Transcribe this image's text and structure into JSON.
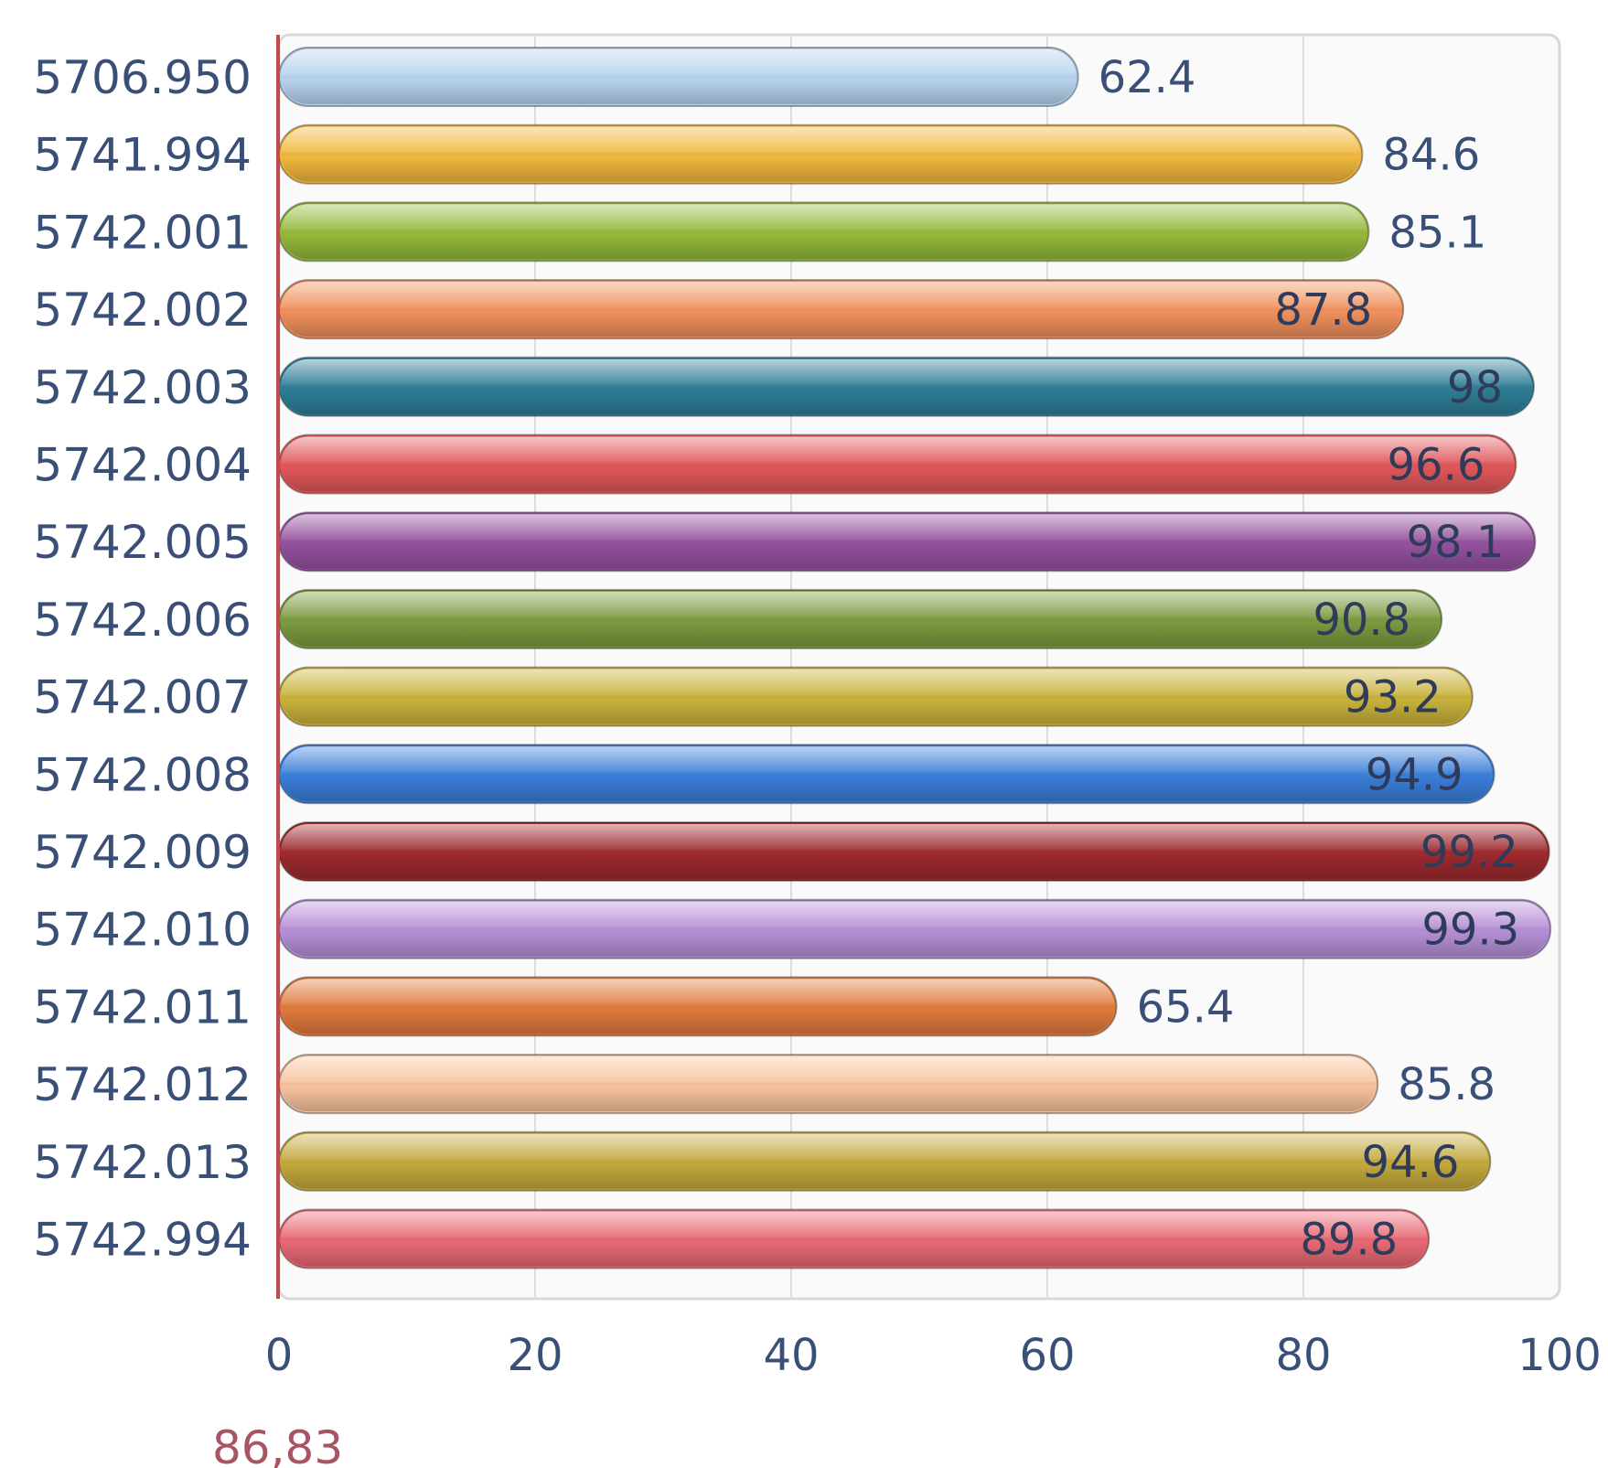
{
  "chart_data": {
    "type": "bar",
    "orientation": "horizontal",
    "categories": [
      "5706.950",
      "5741.994",
      "5742.001",
      "5742.002",
      "5742.003",
      "5742.004",
      "5742.005",
      "5742.006",
      "5742.007",
      "5742.008",
      "5742.009",
      "5742.010",
      "5742.011",
      "5742.012",
      "5742.013",
      "5742.994"
    ],
    "values": [
      62.4,
      84.6,
      85.1,
      87.8,
      98,
      96.6,
      98.1,
      90.8,
      93.2,
      94.9,
      99.2,
      99.3,
      65.4,
      85.8,
      94.6,
      89.8
    ],
    "value_labels": [
      "62.4",
      "84.6",
      "85.1",
      "87.8",
      "98",
      "96.6",
      "98.1",
      "90.8",
      "93.2",
      "94.9",
      "99.2",
      "99.3",
      "65.4",
      "85.8",
      "94.6",
      "89.8"
    ],
    "colors": [
      "#b7d3ee",
      "#f0b83c",
      "#93b83a",
      "#f0905c",
      "#2e7d96",
      "#e0575a",
      "#94519e",
      "#7b9a3f",
      "#c9b23b",
      "#3a7ed8",
      "#9c2a2e",
      "#b58fd6",
      "#e07a3c",
      "#f7c39e",
      "#c3a83c",
      "#e86874"
    ],
    "xticks": [
      "0",
      "20",
      "40",
      "60",
      "80",
      "100"
    ],
    "xlim": [
      0,
      100
    ],
    "grid": true,
    "title": "",
    "xlabel": "",
    "ylabel": "",
    "footnote": "86,83"
  }
}
